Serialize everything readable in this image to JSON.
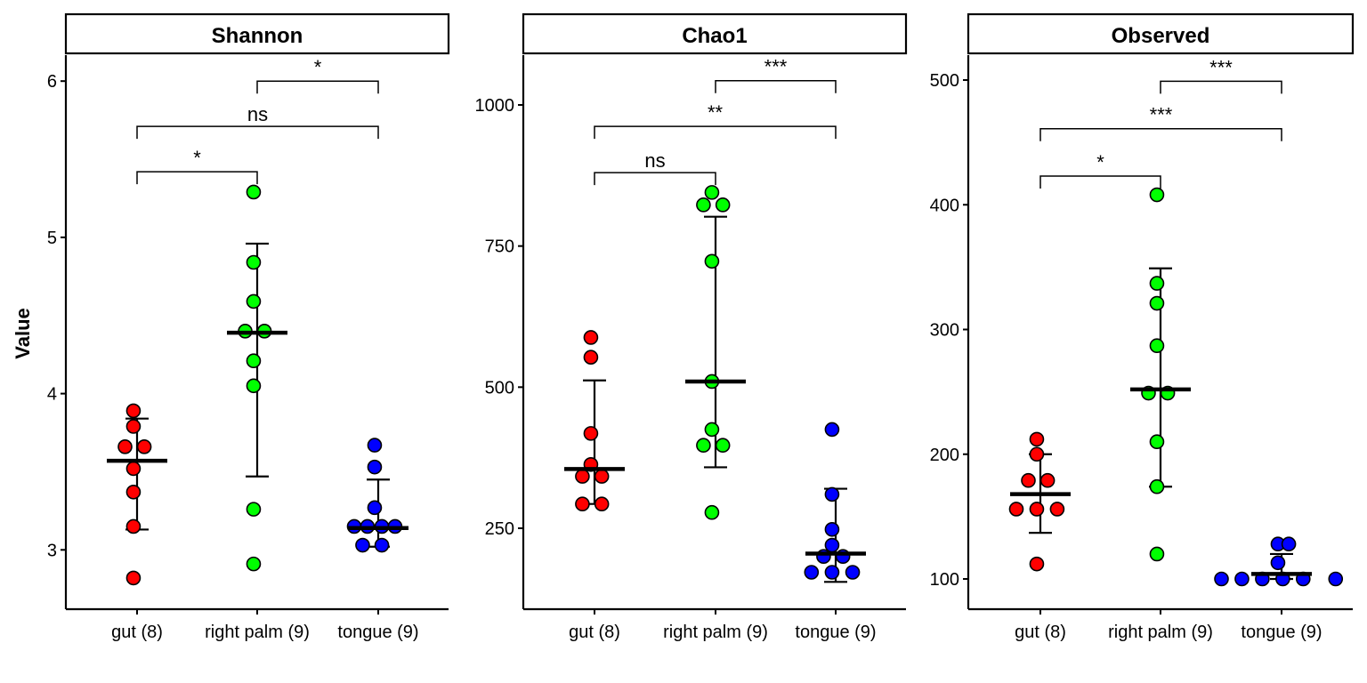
{
  "figure": {
    "ylabel": "Value"
  },
  "chart_data": [
    {
      "type": "scatter",
      "title": "Shannon",
      "xlabel": "",
      "ylabel": "Value",
      "categories": [
        "gut (8)",
        "right palm (9)",
        "tongue (9)"
      ],
      "ylim": [
        2.64,
        6.15
      ],
      "yticks": [
        3,
        4,
        5,
        6
      ],
      "grid": false,
      "series": [
        {
          "category": "gut (8)",
          "color": "#ff0000",
          "points": [
            [
              -0.03,
              3.89
            ],
            [
              -0.03,
              3.79
            ],
            [
              -0.1,
              3.66
            ],
            [
              0.06,
              3.66
            ],
            [
              -0.03,
              3.52
            ],
            [
              -0.03,
              3.37
            ],
            [
              -0.03,
              3.15
            ],
            [
              -0.03,
              2.82
            ]
          ],
          "median": 3.57,
          "q1": 3.13,
          "q3": 3.84
        },
        {
          "category": "right palm (9)",
          "color": "#00ff00",
          "points": [
            [
              -0.03,
              5.29
            ],
            [
              -0.03,
              4.84
            ],
            [
              -0.03,
              4.59
            ],
            [
              -0.1,
              4.4
            ],
            [
              0.06,
              4.4
            ],
            [
              -0.03,
              4.21
            ],
            [
              -0.03,
              4.05
            ],
            [
              -0.03,
              3.26
            ],
            [
              -0.03,
              2.91
            ]
          ],
          "median": 4.39,
          "q1": 3.47,
          "q3": 4.96
        },
        {
          "category": "tongue (9)",
          "color": "#0000ff",
          "points": [
            [
              -0.03,
              3.67
            ],
            [
              -0.03,
              3.53
            ],
            [
              -0.03,
              3.27
            ],
            [
              -0.2,
              3.15
            ],
            [
              -0.09,
              3.15
            ],
            [
              0.03,
              3.15
            ],
            [
              0.14,
              3.15
            ],
            [
              -0.13,
              3.03
            ],
            [
              0.03,
              3.03
            ]
          ],
          "median": 3.14,
          "q1": 3.02,
          "q3": 3.45
        }
      ],
      "comparisons": [
        {
          "from": "gut (8)",
          "to": "right palm (9)",
          "y": 5.42,
          "label": "*"
        },
        {
          "from": "gut (8)",
          "to": "tongue (9)",
          "y": 5.71,
          "label": "ns"
        },
        {
          "from": "right palm (9)",
          "to": "tongue (9)",
          "y": 6.0,
          "label": "*"
        }
      ]
    },
    {
      "type": "scatter",
      "title": "Chao1",
      "xlabel": "",
      "ylabel": "",
      "categories": [
        "gut (8)",
        "right palm (9)",
        "tongue (9)"
      ],
      "ylim": [
        120,
        1100
      ],
      "yticks": [
        250,
        500,
        750,
        1000
      ],
      "grid": false,
      "series": [
        {
          "category": "gut (8)",
          "color": "#ff0000",
          "points": [
            [
              -0.03,
              588
            ],
            [
              -0.03,
              553
            ],
            [
              -0.03,
              418
            ],
            [
              -0.03,
              363
            ],
            [
              -0.1,
              342
            ],
            [
              0.06,
              342
            ],
            [
              -0.1,
              293
            ],
            [
              0.06,
              293
            ]
          ],
          "median": 355,
          "q1": 293,
          "q3": 512
        },
        {
          "category": "right palm (9)",
          "color": "#00ff00",
          "points": [
            [
              -0.03,
              845
            ],
            [
              -0.1,
              823
            ],
            [
              0.06,
              823
            ],
            [
              -0.03,
              723
            ],
            [
              -0.03,
              510
            ],
            [
              -0.03,
              425
            ],
            [
              -0.1,
              397
            ],
            [
              0.06,
              397
            ],
            [
              -0.03,
              278
            ]
          ],
          "median": 510,
          "q1": 358,
          "q3": 802
        },
        {
          "category": "tongue (9)",
          "color": "#0000ff",
          "points": [
            [
              -0.03,
              425
            ],
            [
              -0.03,
              310
            ],
            [
              -0.03,
              248
            ],
            [
              -0.03,
              220
            ],
            [
              -0.1,
              200
            ],
            [
              0.06,
              200
            ],
            [
              -0.2,
              172
            ],
            [
              -0.03,
              172
            ],
            [
              0.14,
              172
            ]
          ],
          "median": 205,
          "q1": 155,
          "q3": 320
        }
      ],
      "comparisons": [
        {
          "from": "gut (8)",
          "to": "right palm (9)",
          "y": 880,
          "label": "ns"
        },
        {
          "from": "gut (8)",
          "to": "tongue (9)",
          "y": 962,
          "label": "**"
        },
        {
          "from": "right palm (9)",
          "to": "tongue (9)",
          "y": 1043,
          "label": "***"
        }
      ]
    },
    {
      "type": "scatter",
      "title": "Observed",
      "xlabel": "",
      "ylabel": "",
      "categories": [
        "gut (8)",
        "right palm (9)",
        "tongue (9)"
      ],
      "ylim": [
        75,
        520
      ],
      "yticks": [
        100,
        200,
        300,
        400,
        500
      ],
      "grid": false,
      "series": [
        {
          "category": "gut (8)",
          "color": "#ff0000",
          "points": [
            [
              -0.03,
              212
            ],
            [
              -0.03,
              200
            ],
            [
              -0.1,
              179
            ],
            [
              0.06,
              179
            ],
            [
              -0.2,
              156
            ],
            [
              -0.03,
              156
            ],
            [
              0.14,
              156
            ],
            [
              -0.03,
              112
            ]
          ],
          "median": 168,
          "q1": 137,
          "q3": 200
        },
        {
          "category": "right palm (9)",
          "color": "#00ff00",
          "points": [
            [
              -0.03,
              408
            ],
            [
              -0.03,
              337
            ],
            [
              -0.03,
              321
            ],
            [
              -0.03,
              287
            ],
            [
              -0.1,
              249
            ],
            [
              0.06,
              249
            ],
            [
              -0.03,
              210
            ],
            [
              -0.03,
              174
            ],
            [
              -0.03,
              120
            ]
          ],
          "median": 252,
          "q1": 174,
          "q3": 349
        },
        {
          "category": "tongue (9)",
          "color": "#0000ff",
          "points": [
            [
              -0.03,
              128
            ],
            [
              0.06,
              128
            ],
            [
              -0.03,
              113
            ],
            [
              -0.5,
              100
            ],
            [
              -0.33,
              100
            ],
            [
              -0.16,
              100
            ],
            [
              0.01,
              100
            ],
            [
              0.18,
              100
            ],
            [
              0.45,
              100
            ]
          ],
          "median": 104,
          "q1": 100,
          "q3": 120
        }
      ],
      "comparisons": [
        {
          "from": "gut (8)",
          "to": "right palm (9)",
          "y": 423,
          "label": "*"
        },
        {
          "from": "gut (8)",
          "to": "tongue (9)",
          "y": 461,
          "label": "***"
        },
        {
          "from": "right palm (9)",
          "to": "tongue (9)",
          "y": 499,
          "label": "***"
        }
      ]
    }
  ]
}
